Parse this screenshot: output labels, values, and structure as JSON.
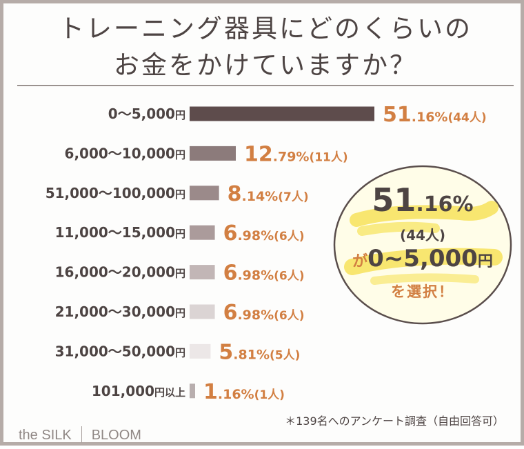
{
  "title": {
    "line1": "トレーニング器具にどのくらいの",
    "line2": "お金をかけていますか？"
  },
  "chart_data": {
    "type": "bar",
    "orientation": "horizontal",
    "title": "トレーニング器具にどのくらいのお金をかけていますか？",
    "categories": [
      {
        "label": "0〜5,000",
        "unit": "円"
      },
      {
        "label": "6,000〜10,000",
        "unit": "円"
      },
      {
        "label": "51,000〜100,000",
        "unit": "円"
      },
      {
        "label": "11,000〜15,000",
        "unit": "円"
      },
      {
        "label": "16,000〜20,000",
        "unit": "円"
      },
      {
        "label": "21,000〜30,000",
        "unit": "円"
      },
      {
        "label": "31,000〜50,000",
        "unit": "円"
      },
      {
        "label": "101,000",
        "unit": "円以上"
      }
    ],
    "values": [
      51.16,
      12.79,
      8.14,
      6.98,
      6.98,
      6.98,
      5.81,
      1.16
    ],
    "value_int": [
      "51",
      "12",
      "8",
      "6",
      "6",
      "6",
      "5",
      "1"
    ],
    "value_dec": [
      ".16%",
      ".79%",
      ".14%",
      ".98%",
      ".98%",
      ".98%",
      ".81%",
      ".16%"
    ],
    "counts": [
      "(44人)",
      "(11人)",
      "(7人)",
      "(6人)",
      "(6人)",
      "(6人)",
      "(5人)",
      "(1人)"
    ],
    "colors": [
      "#5e4c4c",
      "#8c7b7b",
      "#9b8a8a",
      "#ab9b9b",
      "#c2b6b6",
      "#dbd4d4",
      "#ece7e7",
      "#b8aeae"
    ],
    "xlim": [
      0,
      51.16
    ],
    "xlabel": "",
    "ylabel": ""
  },
  "badge": {
    "pct_int": "51",
    "pct_dec": ".16%",
    "count": "(44人)",
    "ga": "が",
    "range": "0~5,000",
    "yen": "円",
    "select": "を選択！"
  },
  "note": "＊139名へのアンケート調査（自由回答可）",
  "logo": {
    "left": "the SILK",
    "right": "BLOOM"
  }
}
